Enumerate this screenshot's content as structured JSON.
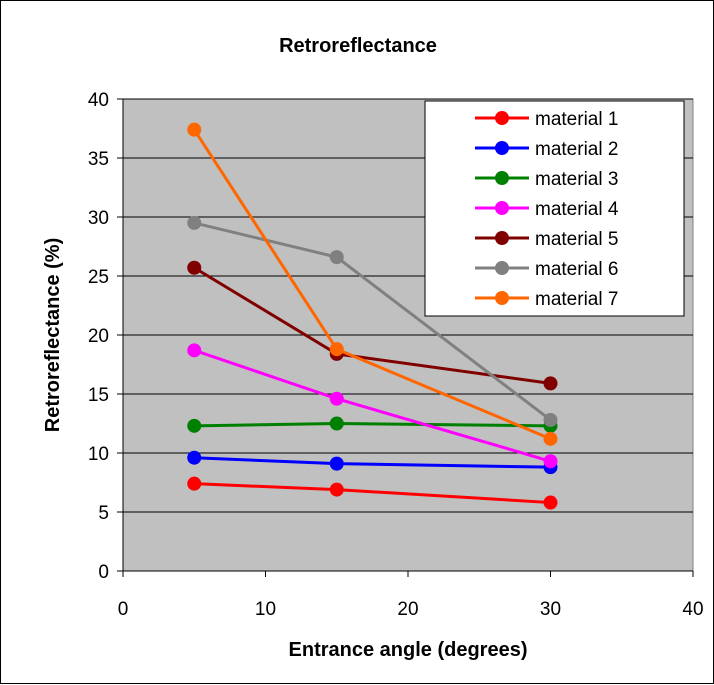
{
  "chart_data": {
    "type": "line",
    "title": "Retroreflectance",
    "xlabel": "Entrance angle (degrees)",
    "ylabel": "Retroreflectance (%)",
    "xlim": [
      0,
      40
    ],
    "ylim": [
      0,
      40
    ],
    "xticks": [
      0,
      10,
      20,
      30,
      40
    ],
    "yticks": [
      0,
      5,
      10,
      15,
      20,
      25,
      30,
      35,
      40
    ],
    "grid": "horizontal",
    "legend_position": "top-right",
    "plot_background": "#c0c0c0",
    "x": [
      5,
      15,
      30
    ],
    "series": [
      {
        "name": "material 1",
        "color": "#ff0000",
        "values": [
          7.4,
          6.9,
          5.8
        ]
      },
      {
        "name": "material 2",
        "color": "#0000ff",
        "values": [
          9.6,
          9.1,
          8.8
        ]
      },
      {
        "name": "material 3",
        "color": "#008000",
        "values": [
          12.3,
          12.5,
          12.3
        ]
      },
      {
        "name": "material 4",
        "color": "#ff00ff",
        "values": [
          18.7,
          14.6,
          9.3
        ]
      },
      {
        "name": "material 5",
        "color": "#800000",
        "values": [
          25.7,
          18.4,
          15.9
        ]
      },
      {
        "name": "material 6",
        "color": "#808080",
        "values": [
          29.5,
          26.6,
          12.8
        ]
      },
      {
        "name": "material 7",
        "color": "#ff6600",
        "values": [
          37.4,
          18.8,
          11.2
        ]
      }
    ]
  }
}
